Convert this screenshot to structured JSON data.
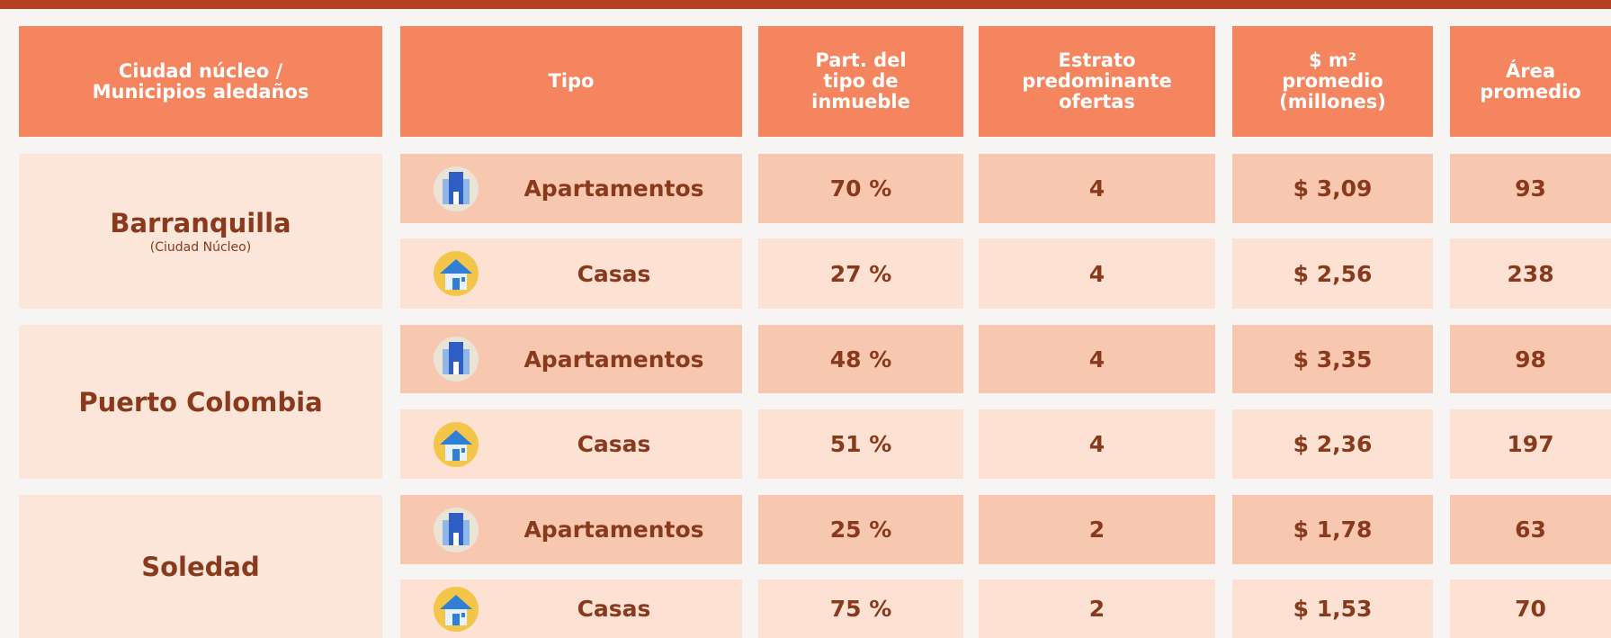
{
  "table": {
    "headers": [
      [
        "Ciudad núcleo /",
        "Municipios aledaños"
      ],
      [
        "Tipo"
      ],
      [
        "Part. del",
        "tipo de",
        "inmueble"
      ],
      [
        "Estrato",
        "predominante",
        "ofertas"
      ],
      [
        "$ m²",
        "promedio",
        "(millones)"
      ],
      [
        "Área",
        "promedio"
      ]
    ],
    "groups": [
      {
        "city": "Barranquilla",
        "note": "(Ciudad Núcleo)",
        "rows": [
          {
            "tipo": "Apartamentos",
            "part": "70 %",
            "estrato": "4",
            "precio": "$ 3,09",
            "area": "93"
          },
          {
            "tipo": "Casas",
            "part": "27 %",
            "estrato": "4",
            "precio": "$ 2,56",
            "area": "238"
          }
        ]
      },
      {
        "city": "Puerto Colombia",
        "rows": [
          {
            "tipo": "Apartamentos",
            "part": "48 %",
            "estrato": "4",
            "precio": "$ 3,35",
            "area": "98"
          },
          {
            "tipo": "Casas",
            "part": "51 %",
            "estrato": "4",
            "precio": "$ 2,36",
            "area": "197"
          }
        ]
      },
      {
        "city": "Soledad",
        "rows": [
          {
            "tipo": "Apartamentos",
            "part": "25 %",
            "estrato": "2",
            "precio": "$ 1,78",
            "area": "63"
          },
          {
            "tipo": "Casas",
            "part": "75 %",
            "estrato": "2",
            "precio": "$ 1,53",
            "area": "70"
          }
        ]
      }
    ]
  }
}
